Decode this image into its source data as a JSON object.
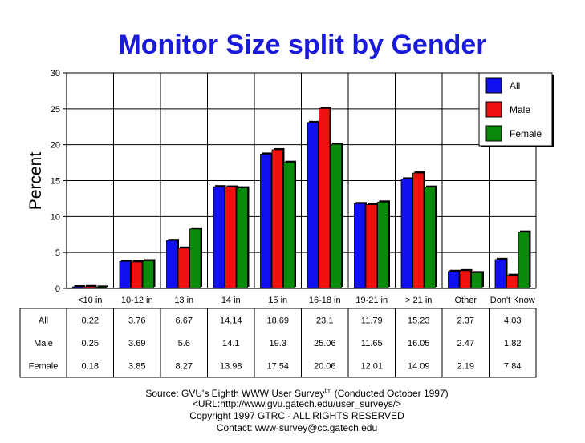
{
  "chart_data": {
    "type": "bar",
    "title": "Monitor Size split by Gender",
    "ylabel": "Percent",
    "xlabel": "",
    "ylim": [
      0,
      30
    ],
    "yticks": [
      0,
      5,
      10,
      15,
      20,
      25,
      30
    ],
    "grid": true,
    "legend_position": "top-right",
    "categories": [
      "<10 in",
      "10-12 in",
      "13 in",
      "14 in",
      "15 in",
      "16-18 in",
      "19-21 in",
      "> 21 in",
      "Other",
      "Don't Know"
    ],
    "series": [
      {
        "name": "All",
        "color": "#1010f0",
        "values": [
          0.22,
          3.76,
          6.67,
          14.14,
          18.69,
          23.1,
          11.79,
          15.23,
          2.37,
          4.03
        ],
        "labels": [
          "0.22",
          "3.76",
          "6.67",
          "14.14",
          "18.69",
          "23.1",
          "11.79",
          "15.23",
          "2.37",
          "4.03"
        ]
      },
      {
        "name": "Male",
        "color": "#f01010",
        "values": [
          0.25,
          3.69,
          5.6,
          14.1,
          19.3,
          25.06,
          11.65,
          16.05,
          2.47,
          1.82
        ],
        "labels": [
          "0.25",
          "3.69",
          "5.6",
          "14.1",
          "19.3",
          "25.06",
          "11.65",
          "16.05",
          "2.47",
          "1.82"
        ]
      },
      {
        "name": "Female",
        "color": "#0a8a0a",
        "values": [
          0.18,
          3.85,
          8.27,
          13.98,
          17.54,
          20.06,
          12.01,
          14.09,
          2.19,
          7.84
        ],
        "labels": [
          "0.18",
          "3.85",
          "8.27",
          "13.98",
          "17.54",
          "20.06",
          "12.01",
          "14.09",
          "2.19",
          "7.84"
        ]
      }
    ]
  },
  "footer": {
    "source_prefix": "Source: GVU's Eighth WWW User Survey",
    "source_sup": "tm",
    "source_suffix": " (Conducted October 1997)",
    "url": "<URL:http://www.gvu.gatech.edu/user_surveys/>",
    "copyright": "Copyright 1997 GTRC - ALL RIGHTS RESERVED",
    "contact": "Contact: www-survey@cc.gatech.edu"
  }
}
